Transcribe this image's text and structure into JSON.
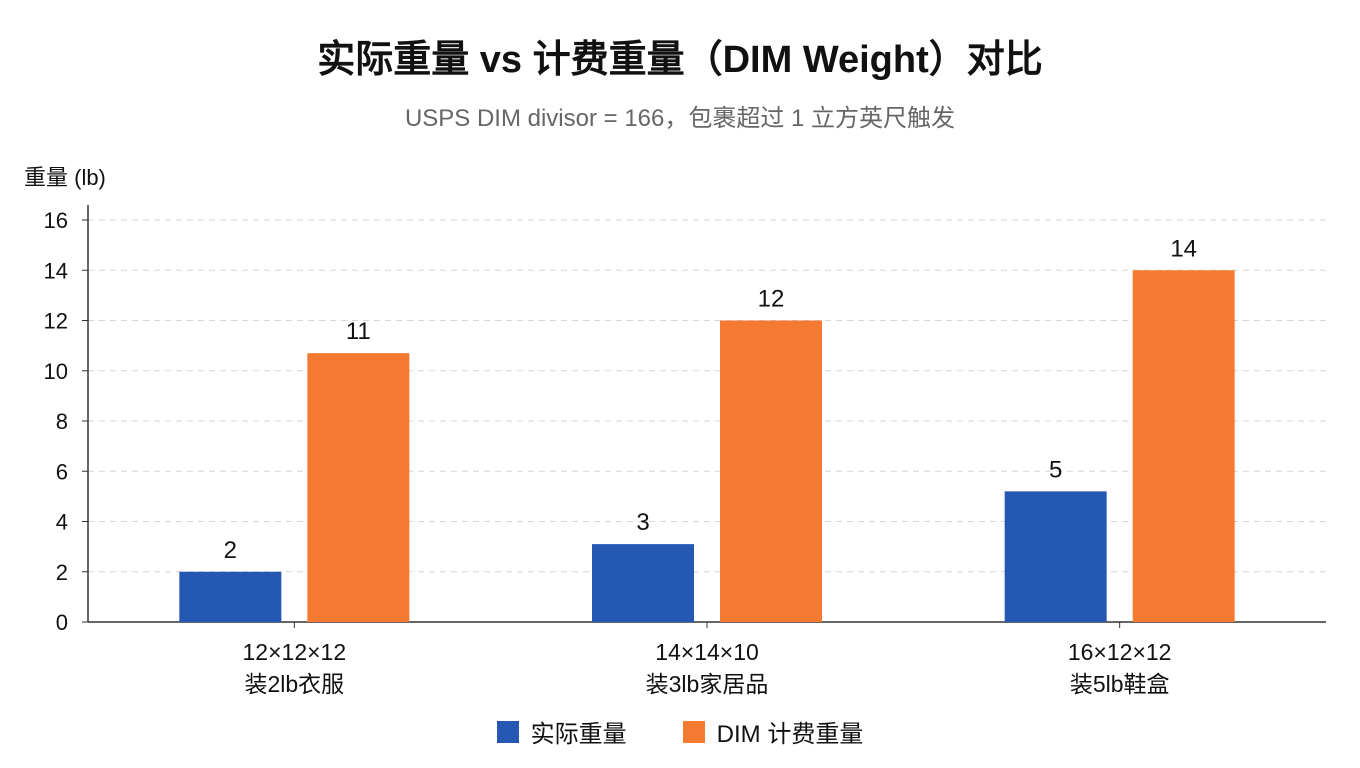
{
  "chart_data": {
    "type": "bar",
    "title": "实际重量 vs 计费重量（DIM Weight）对比",
    "subtitle": "USPS DIM divisor = 166，包裹超过 1 立方英尺触发",
    "ylabel": "重量 (lb)",
    "xlabel": "",
    "ylim": [
      0,
      16
    ],
    "yticks": [
      0,
      2,
      4,
      6,
      8,
      10,
      12,
      14,
      16
    ],
    "grid": true,
    "legend_position": "bottom-center",
    "categories": [
      [
        "12×12×12",
        "装2lb衣服"
      ],
      [
        "14×14×10",
        "装3lb家居品"
      ],
      [
        "16×12×12",
        "装5lb鞋盒"
      ]
    ],
    "series": [
      {
        "name": "实际重量",
        "color": "#2458b3",
        "values": [
          2,
          3.1,
          5.2
        ],
        "labels": [
          "2",
          "3",
          "5"
        ]
      },
      {
        "name": "DIM 计费重量",
        "color": "#f47a32",
        "values": [
          10.7,
          12,
          14
        ],
        "labels": [
          "11",
          "12",
          "14"
        ]
      }
    ]
  }
}
